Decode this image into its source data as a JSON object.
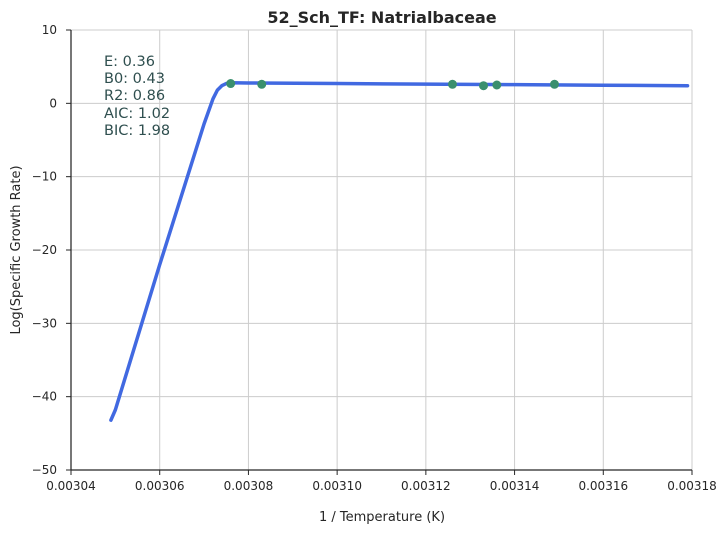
{
  "chart_data": {
    "type": "scatter",
    "title": "52_Sch_TF: Natrialbaceae",
    "xlabel": "1 / Temperature (K)",
    "ylabel": "Log(Specific Growth Rate)",
    "xlim": [
      0.00304,
      0.00318
    ],
    "ylim": [
      -50,
      10
    ],
    "x_ticks": [
      "0.00304",
      "0.00306",
      "0.00308",
      "0.00310",
      "0.00312",
      "0.00314",
      "0.00316",
      "0.00318"
    ],
    "y_ticks": [
      "10",
      "0",
      "−10",
      "−20",
      "−30",
      "−40",
      "−50"
    ],
    "grid": true,
    "annotations": [
      "E:  0.36",
      "B0:  0.43",
      "R2:  0.86",
      "AIC: 1.02",
      "BIC: 1.98"
    ],
    "fit_curve": {
      "x": [
        0.003049,
        0.00305,
        0.00306,
        0.00307,
        0.003072,
        0.003073,
        0.003074,
        0.003075,
        0.003076,
        0.00308,
        0.0031,
        0.00312,
        0.00314,
        0.00316,
        0.003179
      ],
      "y": [
        -43.2,
        -41.8,
        -22.0,
        -2.8,
        0.6,
        1.8,
        2.4,
        2.7,
        2.8,
        2.78,
        2.7,
        2.62,
        2.55,
        2.47,
        2.4
      ]
    },
    "data_points": {
      "x": [
        0.003076,
        0.003083,
        0.003126,
        0.003133,
        0.003136,
        0.003149
      ],
      "y": [
        2.7,
        2.6,
        2.6,
        2.4,
        2.5,
        2.6
      ]
    },
    "colors": {
      "fit_line": "#4169e1",
      "points": "#3a8f6e",
      "grid": "#cccccc",
      "axis": "#262626"
    }
  }
}
